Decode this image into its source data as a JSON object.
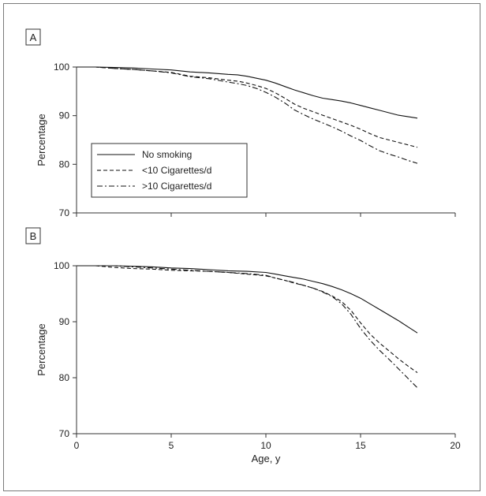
{
  "chart_data": [
    {
      "type": "line",
      "panel_label": "A",
      "xlabel": "",
      "ylabel": "Percentage",
      "xlim": [
        0,
        20
      ],
      "ylim": [
        70,
        100
      ],
      "xticks": [
        0,
        5,
        10,
        15,
        20
      ],
      "yticks": [
        70,
        80,
        90,
        100
      ],
      "x_tick_labels_shown": false,
      "legend": {
        "placement": "left-center",
        "entries": [
          "No smoking",
          "<10 Cigarettes/d",
          ">10 Cigarettes/d"
        ]
      },
      "series": [
        {
          "name": "No smoking",
          "style": "solid",
          "x": [
            0,
            1,
            2,
            3,
            4,
            5,
            6,
            7,
            8,
            8.5,
            9,
            9.5,
            10,
            10.5,
            11,
            11.5,
            12,
            12.5,
            13,
            13.5,
            14,
            14.5,
            15,
            15.5,
            16,
            16.5,
            17,
            17.5,
            18
          ],
          "y": [
            100,
            100,
            99.9,
            99.8,
            99.6,
            99.4,
            99.0,
            98.8,
            98.5,
            98.4,
            98.1,
            97.7,
            97.3,
            96.7,
            96.0,
            95.3,
            94.7,
            94.1,
            93.6,
            93.3,
            93.0,
            92.6,
            92.1,
            91.6,
            91.1,
            90.6,
            90.1,
            89.8,
            89.5
          ]
        },
        {
          "name": "<10 Cigarettes/d",
          "style": "dashed",
          "x": [
            0,
            1,
            2,
            3,
            4,
            5,
            6,
            7,
            8,
            8.5,
            9,
            9.5,
            10,
            10.5,
            11,
            11.5,
            12,
            12.5,
            13,
            13.5,
            14,
            14.5,
            15,
            15.5,
            16,
            16.5,
            17,
            17.5,
            18
          ],
          "y": [
            100,
            100,
            99.7,
            99.5,
            99.2,
            98.9,
            98.1,
            97.8,
            97.3,
            97.1,
            96.7,
            96.2,
            95.6,
            94.7,
            93.6,
            92.4,
            91.5,
            90.8,
            90.1,
            89.4,
            88.7,
            88.0,
            87.2,
            86.3,
            85.5,
            85.0,
            84.5,
            84.0,
            83.5
          ]
        },
        {
          "name": ">10 Cigarettes/d",
          "style": "dashdot",
          "x": [
            0,
            1,
            2,
            3,
            4,
            5,
            6,
            7,
            8,
            8.5,
            9,
            9.5,
            10,
            10.5,
            11,
            11.5,
            12,
            12.5,
            13,
            13.5,
            14,
            14.5,
            15,
            15.5,
            16,
            16.5,
            17,
            17.5,
            18
          ],
          "y": [
            100,
            100,
            99.7,
            99.5,
            99.2,
            98.8,
            98.0,
            97.6,
            96.9,
            96.6,
            96.2,
            95.6,
            94.8,
            93.8,
            92.6,
            91.2,
            90.2,
            89.3,
            88.5,
            87.7,
            86.8,
            85.8,
            84.9,
            83.8,
            82.8,
            82.1,
            81.5,
            80.8,
            80.2
          ]
        }
      ]
    },
    {
      "type": "line",
      "panel_label": "B",
      "xlabel": "Age, y",
      "ylabel": "Percentage",
      "xlim": [
        0,
        20
      ],
      "ylim": [
        70,
        100
      ],
      "xticks": [
        0,
        5,
        10,
        15,
        20
      ],
      "yticks": [
        70,
        80,
        90,
        100
      ],
      "x_tick_labels_shown": true,
      "series": [
        {
          "name": "No smoking",
          "style": "solid",
          "x": [
            0,
            1,
            2,
            3,
            4,
            5,
            6,
            7,
            8,
            9,
            10,
            10.5,
            11,
            11.5,
            12,
            12.5,
            13,
            13.5,
            14,
            14.5,
            15,
            15.5,
            16,
            16.5,
            17,
            17.5,
            18
          ],
          "y": [
            100,
            100,
            100,
            99.9,
            99.8,
            99.6,
            99.5,
            99.3,
            99.1,
            99.0,
            98.8,
            98.5,
            98.2,
            97.9,
            97.6,
            97.2,
            96.8,
            96.3,
            95.7,
            95.0,
            94.2,
            93.2,
            92.2,
            91.2,
            90.2,
            89.1,
            88.0
          ]
        },
        {
          "name": "<10 Cigarettes/d",
          "style": "dashed",
          "x": [
            0,
            1,
            2,
            3,
            4,
            5,
            6,
            7,
            8,
            9,
            10,
            10.5,
            11,
            11.5,
            12,
            12.5,
            13,
            13.5,
            14,
            14.5,
            15,
            15.5,
            16,
            16.5,
            17,
            17.5,
            18
          ],
          "y": [
            100,
            100,
            99.7,
            99.5,
            99.4,
            99.2,
            99.1,
            99.0,
            98.8,
            98.5,
            98.2,
            97.8,
            97.4,
            96.9,
            96.5,
            96.0,
            95.4,
            94.6,
            93.6,
            92.0,
            89.8,
            87.8,
            86.2,
            84.8,
            83.4,
            82.1,
            80.9
          ]
        },
        {
          "name": ">10 Cigarettes/d",
          "style": "dashdot",
          "x": [
            0,
            1,
            2,
            3,
            4,
            5,
            6,
            7,
            8,
            9,
            10,
            10.5,
            11,
            11.5,
            12,
            12.5,
            13,
            13.5,
            14,
            14.5,
            15,
            15.5,
            16,
            16.5,
            17,
            17.5,
            18
          ],
          "y": [
            100,
            100,
            100,
            99.8,
            99.6,
            99.4,
            99.2,
            99.0,
            98.8,
            98.6,
            98.3,
            97.8,
            97.4,
            97.0,
            96.5,
            96.0,
            95.3,
            94.5,
            93.2,
            91.3,
            88.8,
            86.7,
            84.9,
            83.3,
            81.6,
            79.9,
            78.2
          ]
        }
      ]
    }
  ],
  "colors": {
    "line": "#111111",
    "axis": "#333333",
    "frame": "#7a7a7a"
  }
}
